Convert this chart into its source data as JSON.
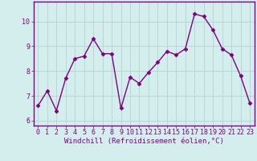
{
  "x": [
    0,
    1,
    2,
    3,
    4,
    5,
    6,
    7,
    8,
    9,
    10,
    11,
    12,
    13,
    14,
    15,
    16,
    17,
    18,
    19,
    20,
    21,
    22,
    23
  ],
  "y": [
    6.6,
    7.2,
    6.4,
    7.7,
    8.5,
    8.6,
    9.3,
    8.7,
    8.7,
    6.5,
    7.75,
    7.5,
    7.95,
    8.35,
    8.8,
    8.65,
    8.9,
    10.3,
    10.2,
    9.65,
    8.9,
    8.65,
    7.8,
    6.7
  ],
  "line_color": "#800080",
  "marker": "D",
  "marker_size": 2.5,
  "bg_color": "#d4eeee",
  "grid_color": "#b8d8d8",
  "xlabel": "Windchill (Refroidissement éolien,°C)",
  "xlabel_fontsize": 6.5,
  "tick_label_fontsize": 6.0,
  "ylim": [
    5.8,
    10.8
  ],
  "yticks": [
    6,
    7,
    8,
    9,
    10
  ],
  "xticks": [
    0,
    1,
    2,
    3,
    4,
    5,
    6,
    7,
    8,
    9,
    10,
    11,
    12,
    13,
    14,
    15,
    16,
    17,
    18,
    19,
    20,
    21,
    22,
    23
  ],
  "line_width": 1.0,
  "spine_color": "#800080"
}
